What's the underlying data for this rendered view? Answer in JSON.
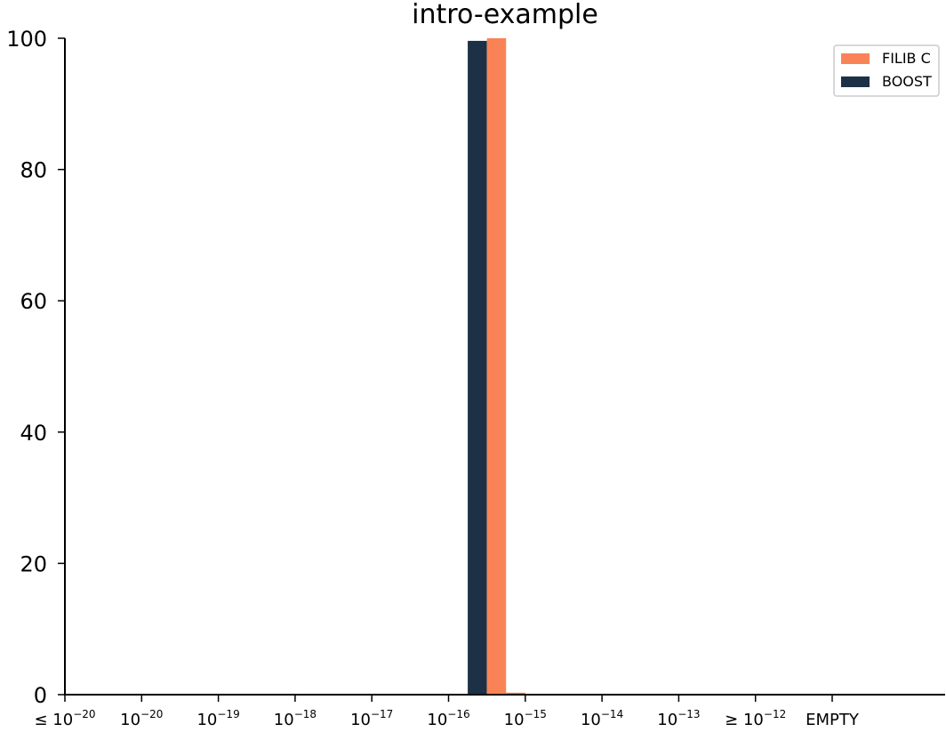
{
  "chart_data": {
    "type": "bar",
    "title": "intro-example",
    "xlabel": "",
    "ylabel": "",
    "ylim": [
      0,
      100
    ],
    "yticks": [
      0,
      20,
      40,
      60,
      80,
      100
    ],
    "grid": false,
    "legend_position": "top-right",
    "categories": [
      {
        "prefix": "≤",
        "base": "10",
        "exp": "−20"
      },
      {
        "prefix": "",
        "base": "10",
        "exp": "−20"
      },
      {
        "prefix": "",
        "base": "10",
        "exp": "−19"
      },
      {
        "prefix": "",
        "base": "10",
        "exp": "−18"
      },
      {
        "prefix": "",
        "base": "10",
        "exp": "−17"
      },
      {
        "prefix": "",
        "base": "10",
        "exp": "−16"
      },
      {
        "prefix": "",
        "base": "10",
        "exp": "−15"
      },
      {
        "prefix": "",
        "base": "10",
        "exp": "−14"
      },
      {
        "prefix": "",
        "base": "10",
        "exp": "−13"
      },
      {
        "prefix": "≥",
        "base": "10",
        "exp": "−12"
      },
      {
        "prefix": "",
        "base": "EMPTY",
        "exp": ""
      }
    ],
    "series": [
      {
        "name": "BOOST",
        "color": "#1c3146",
        "bin_values": [
          0,
          0,
          0,
          0,
          0,
          0,
          0,
          0,
          0,
          0,
          0,
          0,
          0,
          0,
          0,
          0,
          0,
          0,
          0,
          0,
          0,
          99.6,
          0,
          0,
          0,
          0,
          0,
          0,
          0,
          0,
          0,
          0,
          0,
          0,
          0,
          0,
          0,
          0,
          0,
          0,
          0,
          0,
          0,
          0
        ]
      },
      {
        "name": "FILIB C",
        "color": "#f98357",
        "bin_values": [
          0,
          0,
          0,
          0,
          0,
          0,
          0,
          0,
          0,
          0,
          0,
          0,
          0,
          0,
          0,
          0,
          0,
          0,
          0,
          0,
          0,
          0,
          100,
          0.3,
          0,
          0,
          0,
          0,
          0,
          0,
          0,
          0,
          0,
          0,
          0,
          0,
          0,
          0,
          0,
          0,
          0,
          0,
          0,
          0
        ]
      }
    ],
    "bins_per_category": 4,
    "legend": [
      {
        "name": "FILIB C",
        "color": "#f98357"
      },
      {
        "name": "BOOST",
        "color": "#1c3146"
      }
    ]
  }
}
